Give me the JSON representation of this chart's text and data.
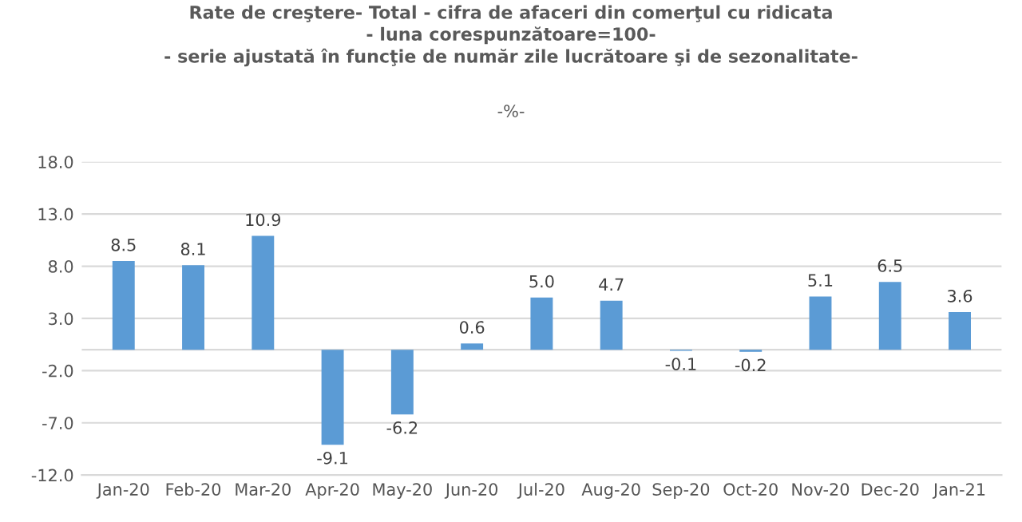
{
  "chart_data": {
    "type": "bar",
    "title": "Rate de creştere- Total - cifra de afaceri din comerţul cu ridicata\n- luna corespunzătoare=100-\n- serie ajustată în funcţie de număr zile lucrătoare şi de sezonalitate-",
    "subtitle": "-%-",
    "categories": [
      "Jan-20",
      "Feb-20",
      "Mar-20",
      "Apr-20",
      "May-20",
      "Jun-20",
      "Jul-20",
      "Aug-20",
      "Sep-20",
      "Oct-20",
      "Nov-20",
      "Dec-20",
      "Jan-21"
    ],
    "values": [
      8.5,
      8.1,
      10.9,
      -9.1,
      -6.2,
      0.6,
      5.0,
      4.7,
      -0.1,
      -0.2,
      5.1,
      6.5,
      3.6
    ],
    "color": "#5b9bd5",
    "ylim": [
      -12,
      18
    ],
    "yticks": [
      {
        "value": -12,
        "label": "-12.0"
      },
      {
        "value": -7,
        "label": "-7.0"
      },
      {
        "value": -2,
        "label": "-2.0"
      },
      {
        "value": 3,
        "label": "3.0"
      },
      {
        "value": 8,
        "label": "8.0"
      },
      {
        "value": 13,
        "label": "13.0"
      },
      {
        "value": 18,
        "label": "18.0"
      }
    ],
    "value_labels": [
      "8.5",
      "8.1",
      "10.9",
      "-9.1",
      "-6.2",
      "0.6",
      "5.0",
      "4.7",
      "-0.1",
      "-0.2",
      "5.1",
      "6.5",
      "3.6"
    ],
    "grid": "y",
    "legend": false
  }
}
